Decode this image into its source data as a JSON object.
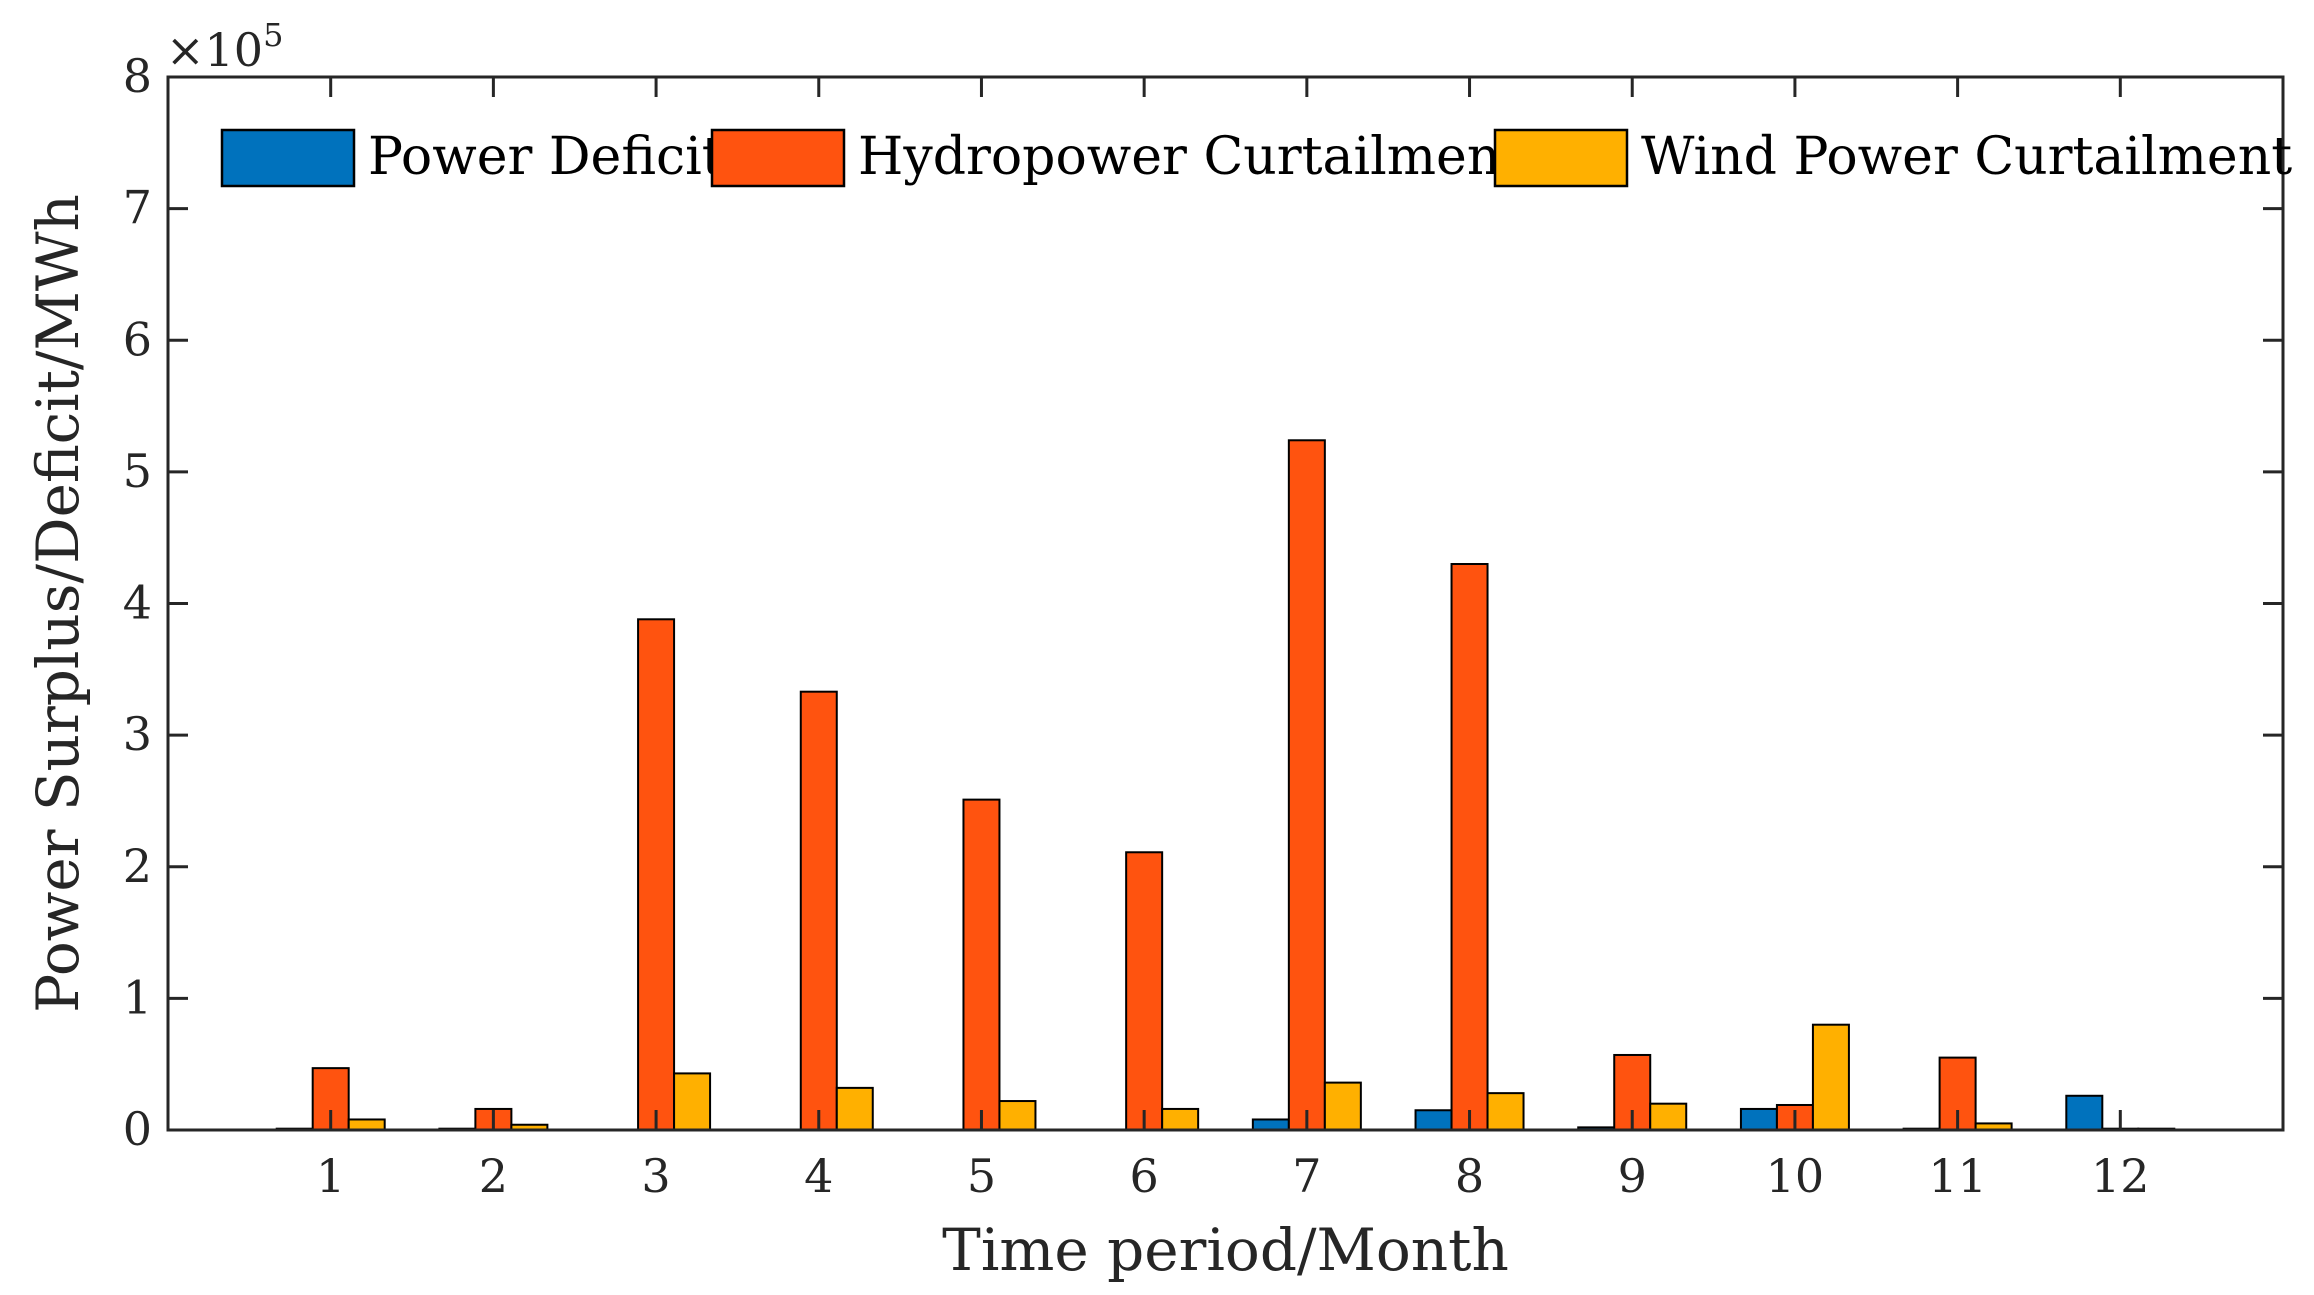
{
  "chart_data": {
    "type": "bar",
    "title": "",
    "xlabel": "Time period/Month",
    "ylabel": "Power Surplus/Deficit/MWh",
    "y_exponent_label": "×10",
    "y_exponent_power": "5",
    "y_scale_factor": 100000,
    "ylim": [
      0,
      800000
    ],
    "yticks": [
      0,
      100000,
      200000,
      300000,
      400000,
      500000,
      600000,
      700000,
      800000
    ],
    "ytick_labels": [
      "0",
      "1",
      "2",
      "3",
      "4",
      "5",
      "6",
      "7",
      "8"
    ],
    "categories": [
      "1",
      "2",
      "3",
      "4",
      "5",
      "6",
      "7",
      "8",
      "9",
      "10",
      "11",
      "12"
    ],
    "legend_position": "top",
    "grid": false,
    "series": [
      {
        "name": "Power Deficit",
        "color": "#0072BD",
        "values": [
          1000,
          1000,
          0,
          0,
          0,
          0,
          8000,
          15000,
          2000,
          16000,
          1000,
          26000
        ]
      },
      {
        "name": "Hydropower Curtailment",
        "color": "#FF530F",
        "values": [
          47000,
          16000,
          388000,
          333000,
          251000,
          211000,
          524000,
          430000,
          57000,
          19000,
          55000,
          1000
        ]
      },
      {
        "name": "Wind Power Curtailment",
        "color": "#FFB000",
        "values": [
          8000,
          4000,
          43000,
          32000,
          22000,
          16000,
          36000,
          28000,
          20000,
          80000,
          5000,
          1000
        ]
      }
    ]
  }
}
